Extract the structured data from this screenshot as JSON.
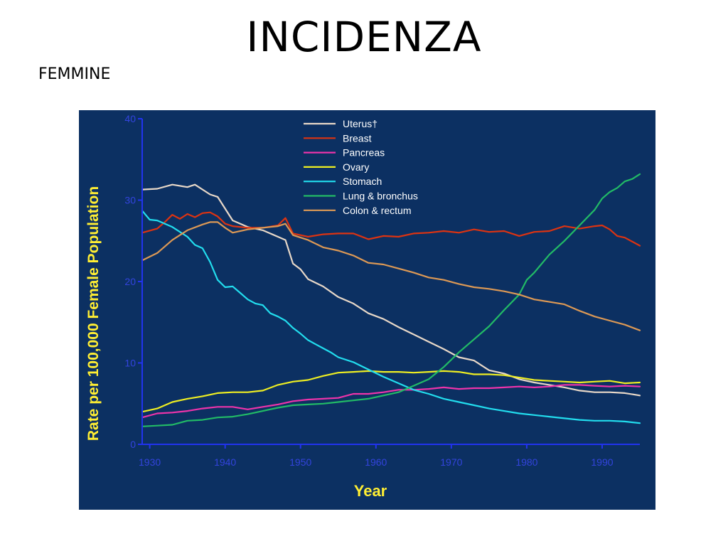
{
  "slide": {
    "title": "INCIDENZA",
    "subtitle": "FEMMINE"
  },
  "colors": {
    "panel_bg": "#0c3062",
    "axis": "#2233ee",
    "tick_text": "#3344dd",
    "axis_title": "#ffee33",
    "legend_text": "#ffffff"
  },
  "chart_data": {
    "type": "line",
    "xlabel": "Year",
    "ylabel": "Rate per 100,000 Female Population",
    "xlim": [
      1929,
      1995
    ],
    "ylim": [
      0,
      40
    ],
    "xticks": [
      1930,
      1940,
      1950,
      1960,
      1970,
      1980,
      1990
    ],
    "yticks": [
      0,
      10,
      20,
      30,
      40
    ],
    "grid": false,
    "legend_position": "top-center",
    "series": [
      {
        "name": "Uterus†",
        "color": "#e8d8c8",
        "points": [
          [
            1929,
            31.3
          ],
          [
            1931,
            31.4
          ],
          [
            1933,
            31.9
          ],
          [
            1935,
            31.6
          ],
          [
            1936,
            31.9
          ],
          [
            1938,
            30.7
          ],
          [
            1939,
            30.4
          ],
          [
            1941,
            27.5
          ],
          [
            1943,
            26.7
          ],
          [
            1945,
            26.3
          ],
          [
            1947,
            25.5
          ],
          [
            1948,
            25.1
          ],
          [
            1949,
            22.2
          ],
          [
            1950,
            21.5
          ],
          [
            1951,
            20.3
          ],
          [
            1953,
            19.4
          ],
          [
            1955,
            18.1
          ],
          [
            1957,
            17.3
          ],
          [
            1959,
            16.1
          ],
          [
            1961,
            15.4
          ],
          [
            1963,
            14.4
          ],
          [
            1965,
            13.5
          ],
          [
            1967,
            12.6
          ],
          [
            1969,
            11.7
          ],
          [
            1971,
            10.7
          ],
          [
            1973,
            10.3
          ],
          [
            1975,
            9.1
          ],
          [
            1977,
            8.7
          ],
          [
            1979,
            8.0
          ],
          [
            1981,
            7.6
          ],
          [
            1983,
            7.3
          ],
          [
            1985,
            7.0
          ],
          [
            1987,
            6.6
          ],
          [
            1989,
            6.4
          ],
          [
            1991,
            6.4
          ],
          [
            1993,
            6.3
          ],
          [
            1995,
            6.0
          ]
        ]
      },
      {
        "name": "Breast",
        "color": "#dd3311",
        "points": [
          [
            1929,
            26.0
          ],
          [
            1931,
            26.5
          ],
          [
            1932,
            27.3
          ],
          [
            1933,
            28.2
          ],
          [
            1934,
            27.7
          ],
          [
            1935,
            28.3
          ],
          [
            1936,
            27.9
          ],
          [
            1937,
            28.4
          ],
          [
            1938,
            28.5
          ],
          [
            1939,
            28.0
          ],
          [
            1940,
            27.1
          ],
          [
            1941,
            26.8
          ],
          [
            1943,
            26.6
          ],
          [
            1945,
            26.6
          ],
          [
            1947,
            26.9
          ],
          [
            1948,
            27.8
          ],
          [
            1949,
            25.9
          ],
          [
            1951,
            25.5
          ],
          [
            1953,
            25.8
          ],
          [
            1955,
            25.9
          ],
          [
            1957,
            25.9
          ],
          [
            1959,
            25.2
          ],
          [
            1961,
            25.6
          ],
          [
            1963,
            25.5
          ],
          [
            1965,
            25.9
          ],
          [
            1967,
            26.0
          ],
          [
            1969,
            26.2
          ],
          [
            1971,
            26.0
          ],
          [
            1973,
            26.4
          ],
          [
            1975,
            26.1
          ],
          [
            1977,
            26.2
          ],
          [
            1979,
            25.6
          ],
          [
            1981,
            26.1
          ],
          [
            1983,
            26.2
          ],
          [
            1985,
            26.8
          ],
          [
            1987,
            26.5
          ],
          [
            1989,
            26.8
          ],
          [
            1990,
            26.9
          ],
          [
            1991,
            26.4
          ],
          [
            1992,
            25.6
          ],
          [
            1993,
            25.4
          ],
          [
            1995,
            24.4
          ]
        ]
      },
      {
        "name": "Pancreas",
        "color": "#ee33aa",
        "points": [
          [
            1929,
            3.3
          ],
          [
            1931,
            3.8
          ],
          [
            1933,
            3.9
          ],
          [
            1935,
            4.1
          ],
          [
            1937,
            4.4
          ],
          [
            1939,
            4.6
          ],
          [
            1941,
            4.6
          ],
          [
            1943,
            4.3
          ],
          [
            1945,
            4.6
          ],
          [
            1947,
            4.9
          ],
          [
            1949,
            5.3
          ],
          [
            1951,
            5.5
          ],
          [
            1953,
            5.6
          ],
          [
            1955,
            5.7
          ],
          [
            1957,
            6.2
          ],
          [
            1959,
            6.2
          ],
          [
            1961,
            6.4
          ],
          [
            1963,
            6.7
          ],
          [
            1965,
            6.7
          ],
          [
            1967,
            6.8
          ],
          [
            1969,
            7.0
          ],
          [
            1971,
            6.8
          ],
          [
            1973,
            6.9
          ],
          [
            1975,
            6.9
          ],
          [
            1977,
            7.0
          ],
          [
            1979,
            7.1
          ],
          [
            1981,
            7.0
          ],
          [
            1983,
            7.1
          ],
          [
            1985,
            7.3
          ],
          [
            1987,
            7.3
          ],
          [
            1989,
            7.2
          ],
          [
            1991,
            7.1
          ],
          [
            1993,
            7.2
          ],
          [
            1995,
            7.1
          ]
        ]
      },
      {
        "name": "Ovary",
        "color": "#eeee22",
        "points": [
          [
            1929,
            4.0
          ],
          [
            1931,
            4.4
          ],
          [
            1933,
            5.2
          ],
          [
            1935,
            5.6
          ],
          [
            1937,
            5.9
          ],
          [
            1939,
            6.3
          ],
          [
            1941,
            6.4
          ],
          [
            1943,
            6.4
          ],
          [
            1945,
            6.6
          ],
          [
            1947,
            7.3
          ],
          [
            1949,
            7.7
          ],
          [
            1951,
            7.9
          ],
          [
            1953,
            8.4
          ],
          [
            1955,
            8.8
          ],
          [
            1957,
            8.9
          ],
          [
            1959,
            9.0
          ],
          [
            1961,
            8.9
          ],
          [
            1963,
            8.9
          ],
          [
            1965,
            8.8
          ],
          [
            1967,
            8.9
          ],
          [
            1969,
            9.0
          ],
          [
            1971,
            8.9
          ],
          [
            1973,
            8.6
          ],
          [
            1975,
            8.6
          ],
          [
            1977,
            8.5
          ],
          [
            1979,
            8.2
          ],
          [
            1981,
            7.9
          ],
          [
            1983,
            7.8
          ],
          [
            1985,
            7.7
          ],
          [
            1987,
            7.6
          ],
          [
            1989,
            7.7
          ],
          [
            1991,
            7.8
          ],
          [
            1993,
            7.5
          ],
          [
            1995,
            7.6
          ]
        ]
      },
      {
        "name": "Stomach",
        "color": "#22ddee",
        "points": [
          [
            1929,
            28.7
          ],
          [
            1930,
            27.6
          ],
          [
            1931,
            27.5
          ],
          [
            1933,
            26.7
          ],
          [
            1935,
            25.5
          ],
          [
            1936,
            24.5
          ],
          [
            1937,
            24.1
          ],
          [
            1938,
            22.4
          ],
          [
            1939,
            20.2
          ],
          [
            1940,
            19.3
          ],
          [
            1941,
            19.4
          ],
          [
            1942,
            18.6
          ],
          [
            1943,
            17.8
          ],
          [
            1944,
            17.3
          ],
          [
            1945,
            17.1
          ],
          [
            1946,
            16.1
          ],
          [
            1947,
            15.7
          ],
          [
            1948,
            15.2
          ],
          [
            1949,
            14.3
          ],
          [
            1950,
            13.6
          ],
          [
            1951,
            12.8
          ],
          [
            1952,
            12.3
          ],
          [
            1953,
            11.8
          ],
          [
            1954,
            11.3
          ],
          [
            1955,
            10.7
          ],
          [
            1957,
            10.1
          ],
          [
            1959,
            9.2
          ],
          [
            1961,
            8.3
          ],
          [
            1963,
            7.5
          ],
          [
            1965,
            6.7
          ],
          [
            1967,
            6.2
          ],
          [
            1969,
            5.6
          ],
          [
            1971,
            5.2
          ],
          [
            1973,
            4.8
          ],
          [
            1975,
            4.4
          ],
          [
            1977,
            4.1
          ],
          [
            1979,
            3.8
          ],
          [
            1981,
            3.6
          ],
          [
            1983,
            3.4
          ],
          [
            1985,
            3.2
          ],
          [
            1987,
            3.0
          ],
          [
            1989,
            2.9
          ],
          [
            1991,
            2.9
          ],
          [
            1993,
            2.8
          ],
          [
            1995,
            2.6
          ]
        ]
      },
      {
        "name": "Lung & bronchus",
        "color": "#22bb66",
        "points": [
          [
            1929,
            2.2
          ],
          [
            1931,
            2.3
          ],
          [
            1933,
            2.4
          ],
          [
            1935,
            2.9
          ],
          [
            1937,
            3.0
          ],
          [
            1939,
            3.3
          ],
          [
            1941,
            3.4
          ],
          [
            1943,
            3.7
          ],
          [
            1945,
            4.1
          ],
          [
            1947,
            4.5
          ],
          [
            1949,
            4.8
          ],
          [
            1951,
            4.9
          ],
          [
            1953,
            5.0
          ],
          [
            1955,
            5.2
          ],
          [
            1957,
            5.4
          ],
          [
            1959,
            5.6
          ],
          [
            1961,
            6.0
          ],
          [
            1963,
            6.4
          ],
          [
            1965,
            7.2
          ],
          [
            1967,
            8.0
          ],
          [
            1969,
            9.5
          ],
          [
            1971,
            11.3
          ],
          [
            1973,
            12.9
          ],
          [
            1975,
            14.5
          ],
          [
            1977,
            16.5
          ],
          [
            1979,
            18.4
          ],
          [
            1980,
            20.2
          ],
          [
            1981,
            21.1
          ],
          [
            1983,
            23.3
          ],
          [
            1985,
            25.0
          ],
          [
            1987,
            26.9
          ],
          [
            1989,
            28.8
          ],
          [
            1990,
            30.2
          ],
          [
            1991,
            31.0
          ],
          [
            1992,
            31.5
          ],
          [
            1993,
            32.3
          ],
          [
            1994,
            32.6
          ],
          [
            1995,
            33.2
          ]
        ]
      },
      {
        "name": "Colon & rectum",
        "color": "#dd9955",
        "points": [
          [
            1929,
            22.6
          ],
          [
            1931,
            23.5
          ],
          [
            1933,
            25.1
          ],
          [
            1935,
            26.3
          ],
          [
            1937,
            27.0
          ],
          [
            1938,
            27.3
          ],
          [
            1939,
            27.3
          ],
          [
            1940,
            26.6
          ],
          [
            1941,
            26.0
          ],
          [
            1943,
            26.4
          ],
          [
            1945,
            26.6
          ],
          [
            1947,
            26.8
          ],
          [
            1948,
            27.1
          ],
          [
            1949,
            25.7
          ],
          [
            1951,
            25.1
          ],
          [
            1953,
            24.2
          ],
          [
            1955,
            23.8
          ],
          [
            1957,
            23.2
          ],
          [
            1959,
            22.3
          ],
          [
            1961,
            22.1
          ],
          [
            1963,
            21.6
          ],
          [
            1965,
            21.1
          ],
          [
            1967,
            20.5
          ],
          [
            1969,
            20.2
          ],
          [
            1971,
            19.7
          ],
          [
            1973,
            19.3
          ],
          [
            1975,
            19.1
          ],
          [
            1977,
            18.8
          ],
          [
            1979,
            18.4
          ],
          [
            1981,
            17.8
          ],
          [
            1983,
            17.5
          ],
          [
            1985,
            17.2
          ],
          [
            1987,
            16.4
          ],
          [
            1989,
            15.7
          ],
          [
            1991,
            15.2
          ],
          [
            1993,
            14.7
          ],
          [
            1995,
            14.0
          ]
        ]
      }
    ]
  }
}
